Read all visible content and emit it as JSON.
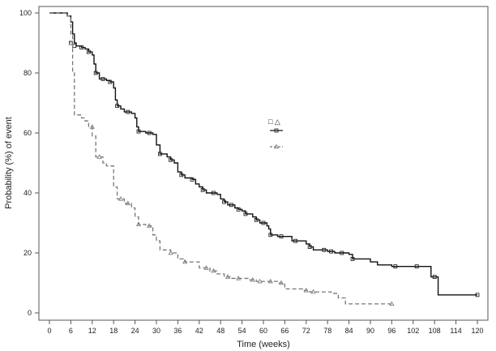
{
  "chart_data": {
    "type": "line",
    "step": true,
    "title": "",
    "xlabel": "Time (weeks)",
    "ylabel": "Probability (%) of event",
    "xlim": [
      0,
      122
    ],
    "ylim": [
      0,
      102
    ],
    "xticks": [
      0,
      6,
      12,
      18,
      24,
      30,
      36,
      42,
      48,
      54,
      60,
      66,
      72,
      78,
      84,
      90,
      96,
      102,
      108,
      114,
      120
    ],
    "yticks": [
      0,
      20,
      40,
      60,
      80,
      100
    ],
    "grid": false,
    "legend_position": "right-center",
    "legend_header_symbols": "□ △",
    "series": [
      {
        "color": "#111111",
        "dash": "solid",
        "marker": "square",
        "points": [
          [
            0,
            100
          ],
          [
            5,
            99
          ],
          [
            6,
            97
          ],
          [
            6.5,
            93
          ],
          [
            7,
            90
          ],
          [
            7.5,
            89
          ],
          [
            9,
            88.5
          ],
          [
            10,
            88
          ],
          [
            11,
            87
          ],
          [
            12,
            86
          ],
          [
            12.5,
            83
          ],
          [
            13,
            80
          ],
          [
            14,
            78
          ],
          [
            16,
            77.5
          ],
          [
            17,
            77
          ],
          [
            18,
            75
          ],
          [
            18.5,
            71
          ],
          [
            19,
            69
          ],
          [
            20,
            68
          ],
          [
            21,
            67
          ],
          [
            23,
            66.5
          ],
          [
            24,
            65
          ],
          [
            24.5,
            62
          ],
          [
            25,
            60.5
          ],
          [
            27,
            60
          ],
          [
            29,
            59.5
          ],
          [
            30,
            56
          ],
          [
            31,
            53
          ],
          [
            33,
            52
          ],
          [
            34,
            51
          ],
          [
            35,
            50
          ],
          [
            36,
            47
          ],
          [
            37,
            46
          ],
          [
            38,
            45
          ],
          [
            40,
            44.5
          ],
          [
            41,
            43
          ],
          [
            42,
            42
          ],
          [
            43,
            41
          ],
          [
            44,
            40
          ],
          [
            47,
            39.5
          ],
          [
            48,
            38
          ],
          [
            49,
            37
          ],
          [
            50,
            36
          ],
          [
            52,
            35
          ],
          [
            53,
            34.5
          ],
          [
            54,
            34
          ],
          [
            55,
            33
          ],
          [
            57,
            32
          ],
          [
            58,
            31
          ],
          [
            59,
            30
          ],
          [
            61,
            29
          ],
          [
            61.5,
            28
          ],
          [
            62,
            26
          ],
          [
            64,
            25.5
          ],
          [
            68,
            24
          ],
          [
            72,
            23
          ],
          [
            73,
            22
          ],
          [
            74,
            21
          ],
          [
            78,
            20.5
          ],
          [
            80,
            20
          ],
          [
            84,
            19.5
          ],
          [
            85,
            18
          ],
          [
            90,
            17
          ],
          [
            92,
            16
          ],
          [
            96,
            15.5
          ],
          [
            103,
            15.5
          ],
          [
            107,
            12
          ],
          [
            109,
            6
          ],
          [
            120,
            6
          ]
        ],
        "markers": [
          [
            6,
            90
          ],
          [
            7,
            89
          ],
          [
            9,
            88.5
          ],
          [
            11,
            87
          ],
          [
            13,
            80
          ],
          [
            15,
            78
          ],
          [
            17,
            77
          ],
          [
            19,
            69
          ],
          [
            22,
            67
          ],
          [
            25,
            60.5
          ],
          [
            28,
            60
          ],
          [
            31,
            53
          ],
          [
            34,
            51
          ],
          [
            37,
            46
          ],
          [
            40,
            44.5
          ],
          [
            43,
            41
          ],
          [
            46,
            40
          ],
          [
            49,
            37
          ],
          [
            51,
            36
          ],
          [
            53,
            34.5
          ],
          [
            55,
            33
          ],
          [
            58,
            31
          ],
          [
            60,
            30
          ],
          [
            62,
            26
          ],
          [
            65,
            25.5
          ],
          [
            69,
            24
          ],
          [
            73,
            22
          ],
          [
            77,
            21
          ],
          [
            79,
            20.5
          ],
          [
            82,
            20
          ],
          [
            85,
            18
          ],
          [
            97,
            15.5
          ],
          [
            103,
            15.5
          ],
          [
            108,
            12
          ],
          [
            120,
            6
          ]
        ]
      },
      {
        "color": "#777777",
        "dash": "dashed",
        "marker": "triangle",
        "points": [
          [
            0,
            100
          ],
          [
            5,
            99
          ],
          [
            6,
            93
          ],
          [
            6.5,
            80
          ],
          [
            7,
            66
          ],
          [
            9,
            65
          ],
          [
            10,
            64
          ],
          [
            11,
            62
          ],
          [
            12,
            59
          ],
          [
            13,
            52
          ],
          [
            15,
            50
          ],
          [
            16,
            49
          ],
          [
            18,
            42
          ],
          [
            19,
            38
          ],
          [
            21,
            36.5
          ],
          [
            23,
            35
          ],
          [
            24,
            32
          ],
          [
            25,
            29.5
          ],
          [
            27,
            29
          ],
          [
            29,
            26
          ],
          [
            30,
            24
          ],
          [
            31,
            21
          ],
          [
            34,
            20
          ],
          [
            36,
            18
          ],
          [
            38,
            17
          ],
          [
            42,
            15
          ],
          [
            45,
            14
          ],
          [
            47,
            13
          ],
          [
            49,
            12
          ],
          [
            51,
            11.5
          ],
          [
            56,
            11
          ],
          [
            58,
            10.5
          ],
          [
            64,
            10
          ],
          [
            66,
            8
          ],
          [
            71,
            7.5
          ],
          [
            73,
            7
          ],
          [
            79,
            6.5
          ],
          [
            81,
            5
          ],
          [
            83,
            3
          ],
          [
            96,
            3
          ]
        ],
        "markers": [
          [
            6,
            90
          ],
          [
            12,
            62
          ],
          [
            14,
            52
          ],
          [
            20,
            38
          ],
          [
            22,
            36.5
          ],
          [
            25,
            29.5
          ],
          [
            28,
            29
          ],
          [
            34,
            20
          ],
          [
            38,
            17
          ],
          [
            44,
            15
          ],
          [
            46,
            14
          ],
          [
            50,
            12
          ],
          [
            53,
            11.5
          ],
          [
            57,
            11
          ],
          [
            59,
            10.5
          ],
          [
            62,
            10.5
          ],
          [
            65,
            10
          ],
          [
            72,
            7.5
          ],
          [
            74,
            7
          ],
          [
            96,
            3
          ]
        ]
      }
    ]
  }
}
